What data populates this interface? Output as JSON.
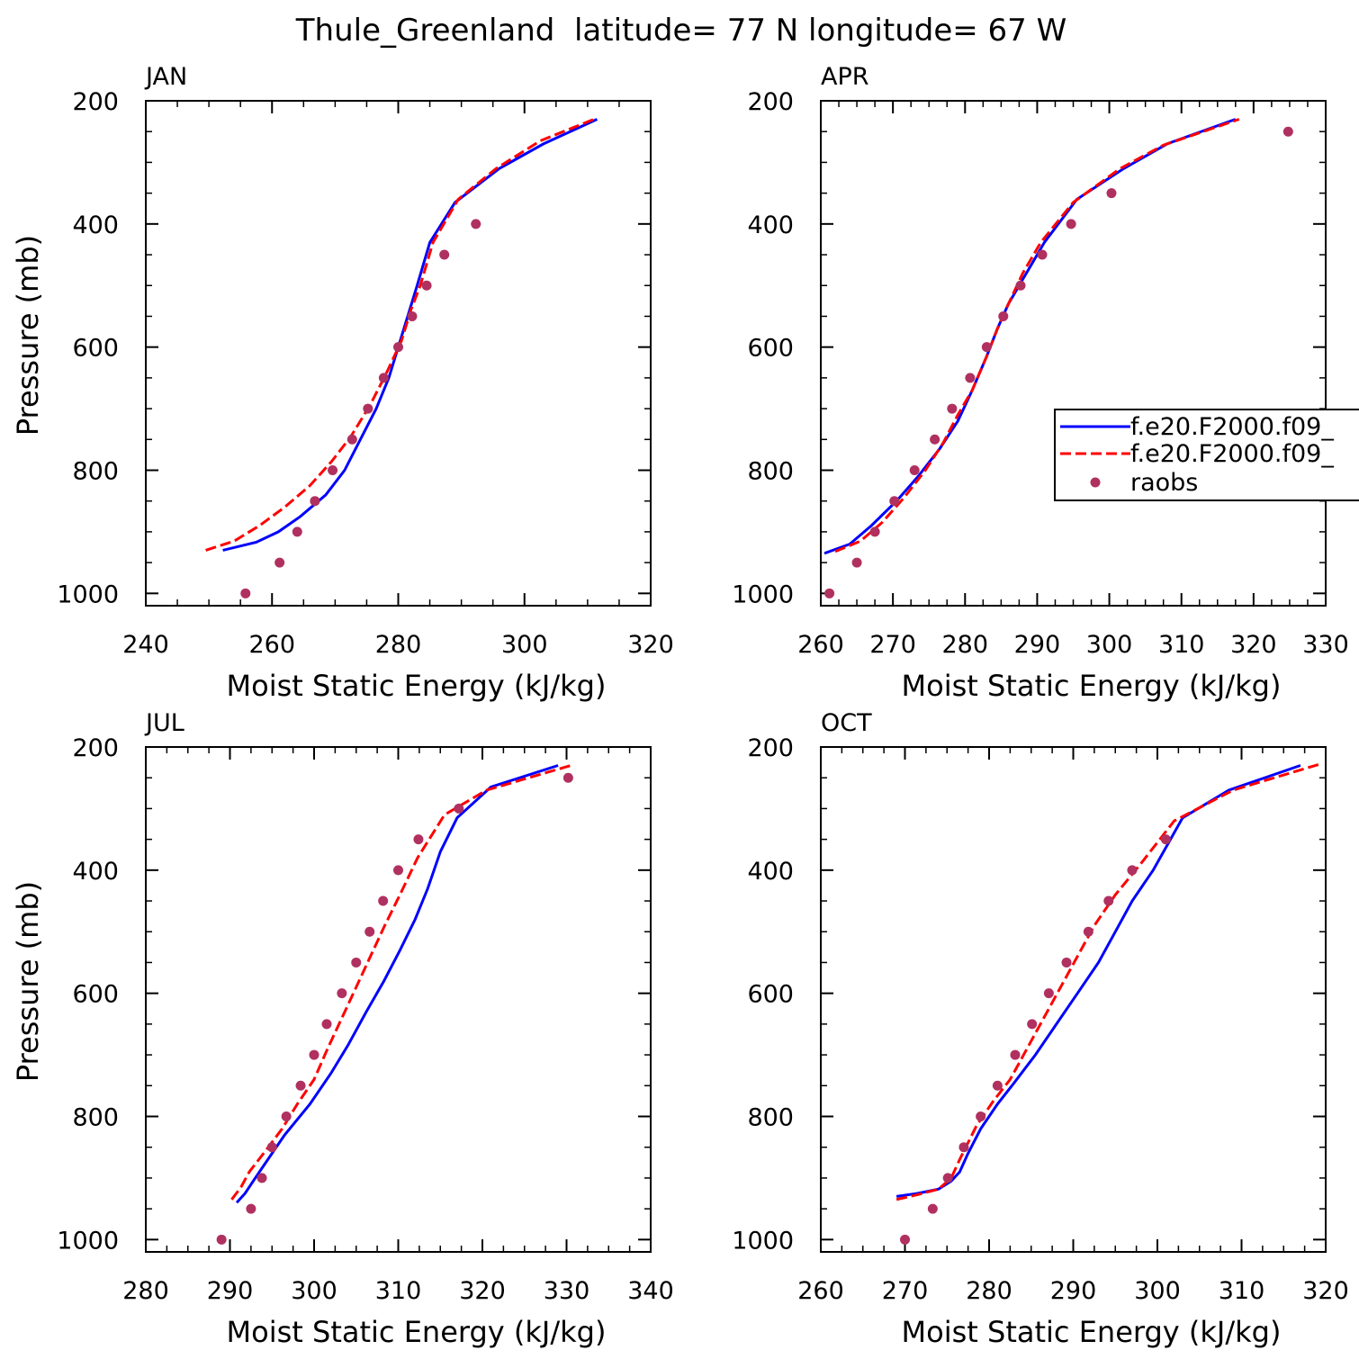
{
  "title": "Thule_Greenland  latitude= 77 N longitude= 67 W",
  "colors": {
    "series1": "#0000ff",
    "series2": "#ff0000",
    "raobs": "#b03060"
  },
  "legend": {
    "entries": [
      "f.e20.F2000.f09_",
      "f.e20.F2000.f09_",
      "raobs"
    ]
  },
  "chart_data": [
    {
      "type": "line",
      "title": "JAN",
      "xlabel": "Moist Static Energy (kJ/kg)",
      "ylabel": "Pressure (mb)",
      "xlim": [
        240,
        320
      ],
      "ylim": [
        200,
        1000
      ],
      "xticks": [
        240,
        260,
        280,
        300,
        320
      ],
      "yticks": [
        200,
        400,
        600,
        800,
        1000
      ],
      "series": [
        {
          "name": "f.e20.F2000.f09_",
          "style": "solid",
          "points": [
            [
              252.2,
              930
            ],
            [
              257.5,
              917
            ],
            [
              261,
              900
            ],
            [
              264.5,
              875
            ],
            [
              268.5,
              840
            ],
            [
              271.5,
              800
            ],
            [
              274,
              750
            ],
            [
              276.5,
              700
            ],
            [
              278.5,
              650
            ],
            [
              280,
              600
            ],
            [
              281.5,
              550
            ],
            [
              283,
              500
            ],
            [
              285,
              430
            ],
            [
              289,
              365
            ],
            [
              296,
              310
            ],
            [
              303,
              270
            ],
            [
              311.5,
              230
            ]
          ]
        },
        {
          "name": "f.e20.F2000.f09_",
          "style": "dashed",
          "points": [
            [
              249.5,
              930
            ],
            [
              254,
              915
            ],
            [
              258,
              890
            ],
            [
              262,
              860
            ],
            [
              266,
              825
            ],
            [
              269.5,
              785
            ],
            [
              272.5,
              745
            ],
            [
              275.5,
              695
            ],
            [
              278,
              645
            ],
            [
              280.5,
              590
            ],
            [
              282,
              540
            ],
            [
              283.5,
              500
            ],
            [
              285.5,
              430
            ],
            [
              289.5,
              360
            ],
            [
              295.5,
              310
            ],
            [
              302.5,
              265
            ],
            [
              311,
              230
            ]
          ]
        },
        {
          "name": "raobs",
          "style": "dots",
          "points": [
            [
              255.8,
              1000
            ],
            [
              261.2,
              950
            ],
            [
              264,
              900
            ],
            [
              266.8,
              850
            ],
            [
              269.6,
              800
            ],
            [
              272.7,
              750
            ],
            [
              275.2,
              700
            ],
            [
              277.7,
              650
            ],
            [
              280,
              600
            ],
            [
              282.2,
              550
            ],
            [
              284.5,
              500
            ],
            [
              287.3,
              450
            ],
            [
              292.3,
              400
            ]
          ]
        }
      ]
    },
    {
      "type": "line",
      "title": "APR",
      "xlabel": "Moist Static Energy (kJ/kg)",
      "ylabel": "",
      "xlim": [
        260,
        330
      ],
      "ylim": [
        200,
        1000
      ],
      "xticks": [
        260,
        270,
        280,
        290,
        300,
        310,
        320,
        330
      ],
      "yticks": [
        200,
        400,
        600,
        800,
        1000
      ],
      "legend_position": "right",
      "series": [
        {
          "name": "f.e20.F2000.f09_",
          "style": "solid",
          "points": [
            [
              260.5,
              935
            ],
            [
              264,
              920
            ],
            [
              267,
              890
            ],
            [
              270.5,
              850
            ],
            [
              273.5,
              810
            ],
            [
              276.5,
              765
            ],
            [
              279,
              720
            ],
            [
              281,
              670
            ],
            [
              283,
              615
            ],
            [
              284.5,
              570
            ],
            [
              286,
              530
            ],
            [
              288,
              490
            ],
            [
              291,
              430
            ],
            [
              295.5,
              360
            ],
            [
              302,
              310
            ],
            [
              308,
              270
            ],
            [
              317.5,
              230
            ]
          ]
        },
        {
          "name": "f.e20.F2000.f09_",
          "style": "dashed",
          "points": [
            [
              262,
              932
            ],
            [
              265.5,
              915
            ],
            [
              268.5,
              885
            ],
            [
              271.5,
              845
            ],
            [
              274.5,
              800
            ],
            [
              277,
              755
            ],
            [
              279,
              710
            ],
            [
              281,
              670
            ],
            [
              283,
              615
            ],
            [
              284.5,
              570
            ],
            [
              286,
              530
            ],
            [
              288,
              480
            ],
            [
              290.5,
              430
            ],
            [
              295,
              365
            ],
            [
              301.5,
              310
            ],
            [
              307.5,
              272
            ],
            [
              318,
              230
            ]
          ]
        },
        {
          "name": "raobs",
          "style": "dots",
          "points": [
            [
              261.2,
              1000
            ],
            [
              265,
              950
            ],
            [
              267.5,
              900
            ],
            [
              270.2,
              850
            ],
            [
              273,
              800
            ],
            [
              275.8,
              750
            ],
            [
              278.2,
              700
            ],
            [
              280.7,
              650
            ],
            [
              283,
              600
            ],
            [
              285.3,
              550
            ],
            [
              287.7,
              500
            ],
            [
              290.7,
              450
            ],
            [
              294.7,
              400
            ],
            [
              300.3,
              350
            ],
            [
              324.8,
              250
            ]
          ]
        }
      ]
    },
    {
      "type": "line",
      "title": "JUL",
      "xlabel": "Moist Static Energy (kJ/kg)",
      "ylabel": "Pressure (mb)",
      "xlim": [
        280,
        340
      ],
      "ylim": [
        200,
        1000
      ],
      "xticks": [
        280,
        290,
        300,
        310,
        320,
        330,
        340
      ],
      "yticks": [
        200,
        400,
        600,
        800,
        1000
      ],
      "series": [
        {
          "name": "f.e20.F2000.f09_",
          "style": "solid",
          "points": [
            [
              290.8,
              940
            ],
            [
              291.8,
              925
            ],
            [
              293,
              900
            ],
            [
              294.5,
              870
            ],
            [
              296.5,
              830
            ],
            [
              299.5,
              780
            ],
            [
              302,
              730
            ],
            [
              304,
              685
            ],
            [
              306.2,
              630
            ],
            [
              308.3,
              580
            ],
            [
              310.2,
              530
            ],
            [
              312,
              480
            ],
            [
              313.5,
              430
            ],
            [
              315,
              370
            ],
            [
              317,
              315
            ],
            [
              321,
              265
            ],
            [
              329,
              230
            ]
          ]
        },
        {
          "name": "f.e20.F2000.f09_",
          "style": "dashed",
          "points": [
            [
              290.2,
              935
            ],
            [
              291.3,
              915
            ],
            [
              292.3,
              890
            ],
            [
              294,
              860
            ],
            [
              296.2,
              820
            ],
            [
              298,
              780
            ],
            [
              300,
              740
            ],
            [
              301.6,
              690
            ],
            [
              303.3,
              640
            ],
            [
              305,
              590
            ],
            [
              306.7,
              540
            ],
            [
              308.4,
              490
            ],
            [
              310.2,
              440
            ],
            [
              312.3,
              380
            ],
            [
              315.5,
              310
            ],
            [
              320.5,
              270
            ],
            [
              330.5,
              230
            ]
          ]
        },
        {
          "name": "raobs",
          "style": "dots",
          "points": [
            [
              289,
              1000
            ],
            [
              292.5,
              950
            ],
            [
              293.8,
              900
            ],
            [
              295,
              850
            ],
            [
              296.7,
              800
            ],
            [
              298.4,
              750
            ],
            [
              300,
              700
            ],
            [
              301.5,
              650
            ],
            [
              303.3,
              600
            ],
            [
              305,
              550
            ],
            [
              306.6,
              500
            ],
            [
              308.2,
              450
            ],
            [
              310,
              400
            ],
            [
              312.4,
              350
            ],
            [
              317.2,
              300
            ],
            [
              330.2,
              250
            ]
          ]
        }
      ]
    },
    {
      "type": "line",
      "title": "OCT",
      "xlabel": "Moist Static Energy (kJ/kg)",
      "ylabel": "",
      "xlim": [
        260,
        320
      ],
      "ylim": [
        200,
        1000
      ],
      "xticks": [
        260,
        270,
        280,
        290,
        300,
        310,
        320
      ],
      "yticks": [
        200,
        400,
        600,
        800,
        1000
      ],
      "series": [
        {
          "name": "f.e20.F2000.f09_",
          "style": "solid",
          "points": [
            [
              269,
              930
            ],
            [
              271.5,
              925
            ],
            [
              274,
              918
            ],
            [
              275.5,
              905
            ],
            [
              276.5,
              890
            ],
            [
              277.5,
              860
            ],
            [
              279,
              820
            ],
            [
              281,
              780
            ],
            [
              283,
              745
            ],
            [
              285.5,
              700
            ],
            [
              288,
              650
            ],
            [
              290.5,
              600
            ],
            [
              293,
              550
            ],
            [
              295,
              500
            ],
            [
              297,
              450
            ],
            [
              299.5,
              400
            ],
            [
              303,
              315
            ],
            [
              308.5,
              270
            ],
            [
              317,
              230
            ]
          ]
        },
        {
          "name": "f.e20.F2000.f09_",
          "style": "dashed",
          "points": [
            [
              269,
              935
            ],
            [
              271.5,
              927
            ],
            [
              274,
              918
            ],
            [
              275.5,
              900
            ],
            [
              276.5,
              870
            ],
            [
              278.5,
              815
            ],
            [
              280.5,
              775
            ],
            [
              282.5,
              740
            ],
            [
              284.5,
              690
            ],
            [
              286.5,
              640
            ],
            [
              288.5,
              590
            ],
            [
              290.5,
              540
            ],
            [
              292.5,
              490
            ],
            [
              295,
              440
            ],
            [
              298,
              390
            ],
            [
              302,
              320
            ],
            [
              309,
              270
            ],
            [
              319.5,
              227
            ]
          ]
        },
        {
          "name": "raobs",
          "style": "dots",
          "points": [
            [
              270,
              1000
            ],
            [
              273.3,
              950
            ],
            [
              275.1,
              900
            ],
            [
              277,
              850
            ],
            [
              279,
              800
            ],
            [
              281,
              750
            ],
            [
              283.1,
              700
            ],
            [
              285.1,
              650
            ],
            [
              287.1,
              600
            ],
            [
              289.2,
              550
            ],
            [
              291.8,
              500
            ],
            [
              294.2,
              450
            ],
            [
              297,
              400
            ],
            [
              301,
              350
            ]
          ]
        }
      ]
    }
  ]
}
